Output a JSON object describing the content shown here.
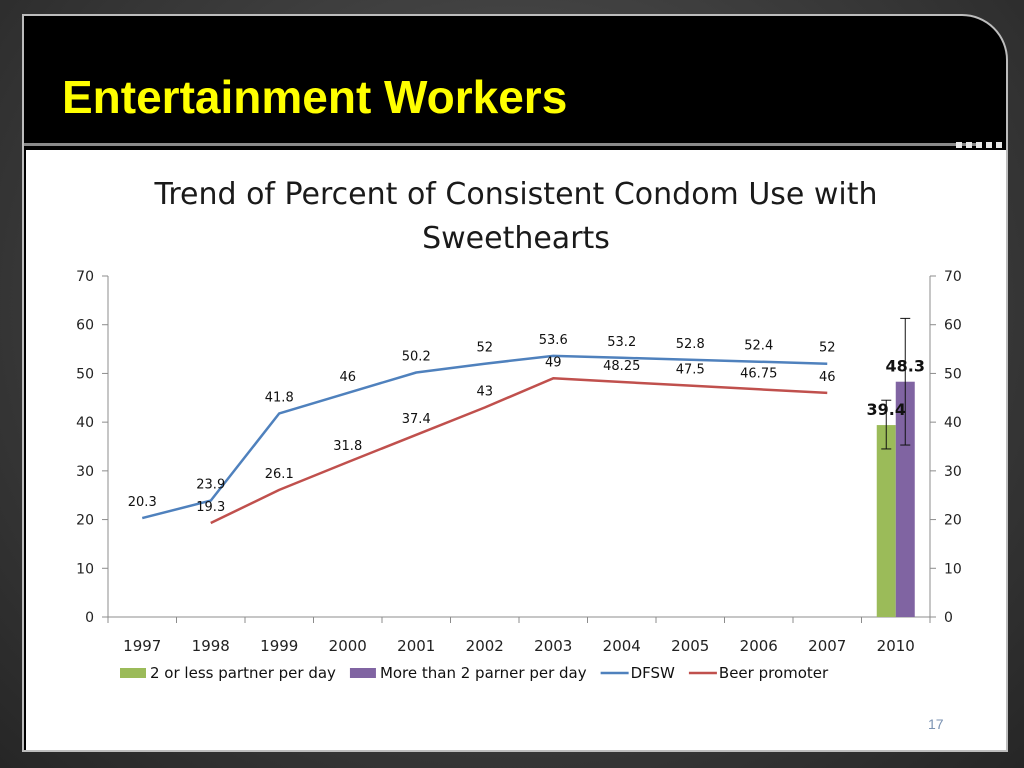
{
  "slide": {
    "title": "Entertainment Workers",
    "number": "17"
  },
  "chart_data": {
    "type": "line",
    "title": "Trend of Percent of Consistent Condom Use with Sweethearts",
    "categories": [
      "1997",
      "1998",
      "1999",
      "2000",
      "2001",
      "2002",
      "2003",
      "2004",
      "2005",
      "2006",
      "2007",
      "2010"
    ],
    "ylim": [
      0,
      70
    ],
    "yticks": [
      0,
      10,
      20,
      30,
      40,
      50,
      60,
      70
    ],
    "secondary_yticks": [
      0,
      10,
      20,
      30,
      40,
      50,
      60,
      70
    ],
    "grid": false,
    "legend_position": "bottom",
    "series": [
      {
        "name": "DFSW",
        "type": "line",
        "color": "#4f81bd",
        "x": [
          "1997",
          "1998",
          "1999",
          "2000",
          "2001",
          "2002",
          "2003",
          "2004",
          "2005",
          "2006",
          "2007"
        ],
        "values": [
          20.3,
          23.9,
          41.8,
          46,
          50.2,
          52,
          53.6,
          53.2,
          52.8,
          52.4,
          52
        ],
        "labels": [
          "20.3",
          "23.9",
          "41.8",
          "46",
          "50.2",
          "52",
          "53.6",
          "53.2",
          "52.8",
          "52.4",
          "52"
        ]
      },
      {
        "name": "Beer promoter",
        "type": "line",
        "color": "#c0504d",
        "x": [
          "1998",
          "1999",
          "2000",
          "2001",
          "2002",
          "2003",
          "2004",
          "2005",
          "2006",
          "2007"
        ],
        "values": [
          19.3,
          26.1,
          31.8,
          37.4,
          43,
          49,
          48.25,
          47.5,
          46.75,
          46
        ],
        "labels": [
          "19.3",
          "26.1",
          "31.8",
          "37.4",
          "43",
          "49",
          "48.25",
          "47.5",
          "46.75",
          "46"
        ]
      },
      {
        "name": "2 or less partner per day",
        "type": "bar",
        "color": "#9bbb59",
        "x": [
          "2010"
        ],
        "values": [
          39.4
        ],
        "labels": [
          "39.4"
        ],
        "error": [
          [
            34.5,
            44.5
          ]
        ]
      },
      {
        "name": "More than 2 parner per day",
        "type": "bar",
        "color": "#8064a2",
        "x": [
          "2010"
        ],
        "values": [
          48.3
        ],
        "labels": [
          "48.3"
        ],
        "error": [
          [
            35.3,
            61.3
          ]
        ]
      }
    ],
    "legend": [
      {
        "name": "2 or less partner per day",
        "kind": "bar",
        "color": "#9bbb59"
      },
      {
        "name": "More than 2 parner per day",
        "kind": "bar",
        "color": "#8064a2"
      },
      {
        "name": "DFSW",
        "kind": "line",
        "color": "#4f81bd"
      },
      {
        "name": "Beer promoter",
        "kind": "line",
        "color": "#c0504d"
      }
    ]
  }
}
